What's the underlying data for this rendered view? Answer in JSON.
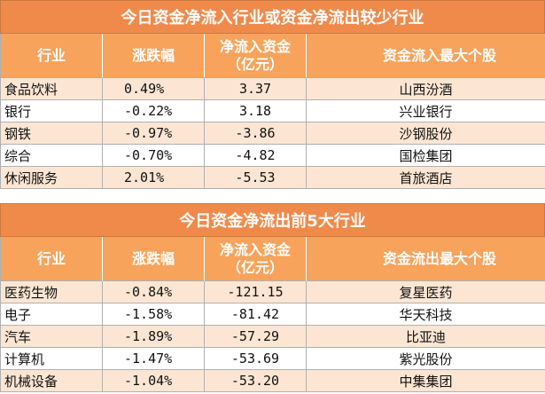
{
  "table1": {
    "title": "今日资金净流入行业或资金净流出较少行业",
    "headers": [
      "行业",
      "涨跌幅",
      "净流入资金\n（亿元）",
      "资金流入最大个股"
    ],
    "rows": [
      {
        "industry": "食品饮料",
        "change": "0.49%",
        "netflow": "3.37",
        "stock": "山西汾酒"
      },
      {
        "industry": "银行",
        "change": "-0.22%",
        "netflow": "3.18",
        "stock": "兴业银行"
      },
      {
        "industry": "钢铁",
        "change": "-0.97%",
        "netflow": "-3.86",
        "stock": "沙钢股份"
      },
      {
        "industry": "综合",
        "change": "-0.70%",
        "netflow": "-4.82",
        "stock": "国检集团"
      },
      {
        "industry": "休闲服务",
        "change": "2.01%",
        "netflow": "-5.53",
        "stock": "首旅酒店"
      }
    ]
  },
  "table2": {
    "title": "今日资金净流出前5大行业",
    "headers": [
      "行业",
      "涨跌幅",
      "净流入资金\n（亿元）",
      "资金流出最大个股"
    ],
    "rows": [
      {
        "industry": "医药生物",
        "change": "-0.84%",
        "netflow": "-121.15",
        "stock": "复星医药"
      },
      {
        "industry": "电子",
        "change": "-1.58%",
        "netflow": "-81.42",
        "stock": "华天科技"
      },
      {
        "industry": "汽车",
        "change": "-1.89%",
        "netflow": "-57.29",
        "stock": "比亚迪"
      },
      {
        "industry": "计算机",
        "change": "-1.47%",
        "netflow": "-53.69",
        "stock": "紫光股份"
      },
      {
        "industry": "机械设备",
        "change": "-1.04%",
        "netflow": "-53.20",
        "stock": "中集集团"
      }
    ]
  }
}
